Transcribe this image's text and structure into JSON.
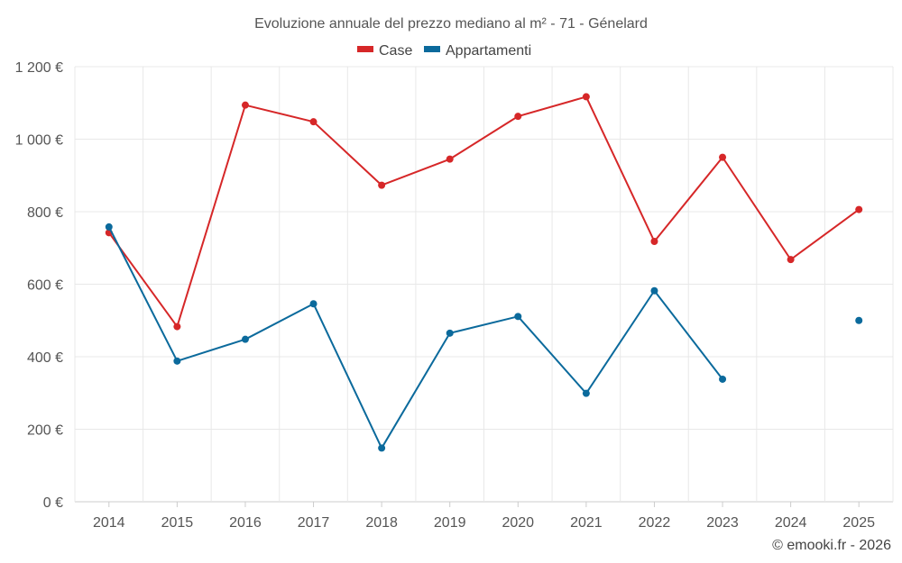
{
  "chart_data": {
    "type": "line",
    "title": "Evoluzione annuale del prezzo mediano al m² - 71 - Génelard",
    "xlabel": "",
    "ylabel": "",
    "categories": [
      "2014",
      "2015",
      "2016",
      "2017",
      "2018",
      "2019",
      "2020",
      "2021",
      "2022",
      "2023",
      "2024",
      "2025"
    ],
    "y_ticks": [
      0,
      200,
      400,
      600,
      800,
      1000,
      1200
    ],
    "y_tick_labels": [
      "0 €",
      "200 €",
      "400 €",
      "600 €",
      "800 €",
      "1 000 €",
      "1 200 €"
    ],
    "ylim": [
      0,
      1200
    ],
    "grid": true,
    "legend_position": "top-center",
    "series": [
      {
        "name": "Case",
        "color": "#d62728",
        "values": [
          742,
          483,
          1094,
          1048,
          873,
          945,
          1063,
          1117,
          718,
          950,
          668,
          806
        ]
      },
      {
        "name": "Appartamenti",
        "color": "#0b6a9c",
        "values": [
          758,
          388,
          448,
          546,
          148,
          465,
          511,
          299,
          582,
          338,
          null,
          500
        ]
      }
    ]
  },
  "credit": "© emooki.fr - 2026"
}
